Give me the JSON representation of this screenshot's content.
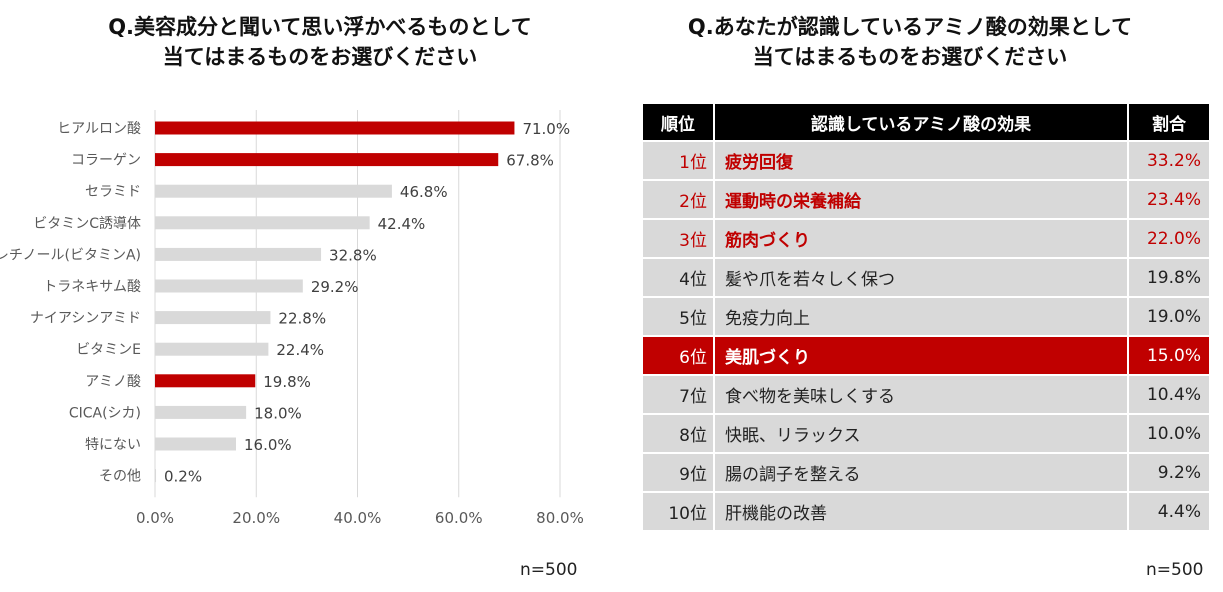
{
  "left": {
    "title_line1": "Q.美容成分と聞いて思い浮かべるものとして",
    "title_line2": "当てはまるものをお選びください",
    "n": "n=500"
  },
  "right": {
    "title_line1": "Q.あなたが認識しているアミノ酸の効果として",
    "title_line2": "当てはまるものをお選びください",
    "n": "n=500",
    "headers": [
      "順位",
      "認識しているアミノ酸の効果",
      "割合"
    ],
    "rows": [
      {
        "rank": "1位",
        "effect": "疲労回復",
        "pct": "33.2%",
        "style": "top"
      },
      {
        "rank": "2位",
        "effect": "運動時の栄養補給",
        "pct": "23.4%",
        "style": "top"
      },
      {
        "rank": "3位",
        "effect": "筋肉づくり",
        "pct": "22.0%",
        "style": "top"
      },
      {
        "rank": "4位",
        "effect": "髪や爪を若々しく保つ",
        "pct": "19.8%",
        "style": "normal"
      },
      {
        "rank": "5位",
        "effect": "免疫力向上",
        "pct": "19.0%",
        "style": "normal"
      },
      {
        "rank": "6位",
        "effect": "美肌づくり",
        "pct": "15.0%",
        "style": "highlight"
      },
      {
        "rank": "7位",
        "effect": "食べ物を美味しくする",
        "pct": "10.4%",
        "style": "normal"
      },
      {
        "rank": "8位",
        "effect": "快眠、リラックス",
        "pct": "10.0%",
        "style": "normal"
      },
      {
        "rank": "9位",
        "effect": "腸の調子を整える",
        "pct": "9.2%",
        "style": "normal"
      },
      {
        "rank": "10位",
        "effect": "肝機能の改善",
        "pct": "4.4%",
        "style": "normal"
      }
    ]
  },
  "colors": {
    "highlight": "#c00000",
    "default_bar": "#d9d9d9",
    "header": "#000000"
  },
  "chart_data": {
    "type": "bar",
    "orientation": "horizontal",
    "title": "Q.美容成分と聞いて思い浮かべるものとして当てはまるものをお選びください",
    "categories": [
      "ヒアルロン酸",
      "コラーゲン",
      "セラミド",
      "ビタミンC誘導体",
      "レチノール(ビタミンA)",
      "トラネキサム酸",
      "ナイアシンアミド",
      "ビタミンE",
      "アミノ酸",
      "CICA(シカ)",
      "特にない",
      "その他"
    ],
    "values": [
      71.0,
      67.8,
      46.8,
      42.4,
      32.8,
      29.2,
      22.8,
      22.4,
      19.8,
      18.0,
      16.0,
      0.2
    ],
    "value_labels": [
      "71.0%",
      "67.8%",
      "46.8%",
      "42.4%",
      "32.8%",
      "29.2%",
      "22.8%",
      "22.4%",
      "19.8%",
      "18.0%",
      "16.0%",
      "0.2%"
    ],
    "highlighted": [
      "ヒアルロン酸",
      "コラーゲン",
      "アミノ酸"
    ],
    "xlim": [
      0,
      80
    ],
    "xticks": [
      "0.0%",
      "20.0%",
      "40.0%",
      "60.0%",
      "80.0%"
    ],
    "grid": true
  }
}
